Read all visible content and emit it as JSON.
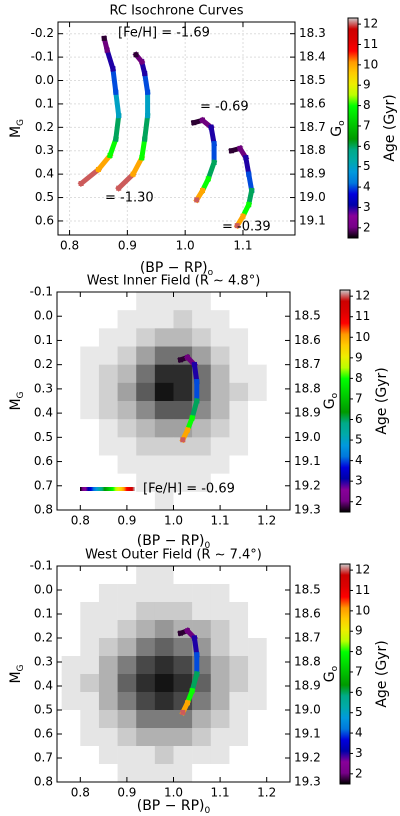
{
  "chart_data": [
    {
      "type": "line",
      "title": "RC Isochrone Curves",
      "xlabel": {
        "main": "(BP − RP)",
        "sub": "o"
      },
      "ylabel": {
        "main": "M",
        "sub": "G"
      },
      "y2label": {
        "main": "G",
        "sub": "o"
      },
      "xlim": [
        0.78,
        1.19
      ],
      "ylim": [
        -0.25,
        0.66
      ],
      "y2lim": [
        18.25,
        19.16
      ],
      "y_inverted": true,
      "grid": true,
      "xticks": [
        0.8,
        0.9,
        {
          "value": 1,
          "label": "1.0"
        },
        1.1
      ],
      "yticks": [
        -0.2,
        -0.1,
        {
          "value": 0,
          "label": "0.0"
        },
        0.1,
        0.2,
        0.3,
        0.4,
        0.5,
        0.6
      ],
      "y2ticks": [
        18.3,
        18.4,
        18.5,
        18.6,
        18.7,
        18.8,
        18.9,
        {
          "value": 19,
          "label": "19.0"
        },
        19.1
      ],
      "colorbar": {
        "label": "Age (Gyr)",
        "lim": [
          1.5,
          12.3
        ],
        "ticks": [
          2,
          3,
          4,
          5,
          6,
          7,
          8,
          9,
          10,
          11,
          12
        ],
        "cmap": "nipy_spectral"
      },
      "series": [
        {
          "name": "[Fe/H] = -1.69",
          "x": [
            0.82,
            0.85,
            0.87,
            0.88,
            0.885,
            0.88,
            0.875,
            0.865,
            0.86
          ],
          "values": [
            0.44,
            0.38,
            0.32,
            0.25,
            0.15,
            0.05,
            -0.05,
            -0.13,
            -0.18
          ],
          "age": [
            12,
            10,
            8,
            6,
            5,
            4,
            3,
            2,
            1.7
          ]
        },
        {
          "name": "= -1.30",
          "x": [
            0.885,
            0.91,
            0.925,
            0.93,
            0.935,
            0.935,
            0.93,
            0.925,
            0.915
          ],
          "values": [
            0.46,
            0.4,
            0.33,
            0.25,
            0.15,
            0.05,
            -0.03,
            -0.08,
            -0.11
          ],
          "age": [
            12,
            10,
            8,
            6,
            5,
            4,
            3,
            2,
            1.7
          ]
        },
        {
          "name": "= -0.69",
          "x": [
            1.015,
            1.03,
            1.045,
            1.05,
            1.05,
            1.04,
            1.03,
            1.02
          ],
          "values": [
            0.18,
            0.17,
            0.2,
            0.27,
            0.35,
            0.42,
            0.47,
            0.51
          ],
          "age": [
            1.7,
            2,
            3,
            4,
            6,
            8,
            10,
            12
          ]
        },
        {
          "name": "= -0.39",
          "x": [
            1.08,
            1.095,
            1.105,
            1.11,
            1.115,
            1.11,
            1.1,
            1.09
          ],
          "values": [
            0.3,
            0.29,
            0.33,
            0.4,
            0.47,
            0.53,
            0.58,
            0.62
          ],
          "age": [
            1.7,
            2,
            3,
            4,
            6,
            8,
            10,
            12
          ]
        }
      ]
    },
    {
      "type": "heatmap",
      "title": "West Inner Field (R  ∼  4.8°)",
      "xlabel": {
        "main": "(BP − RP)",
        "sub": "0"
      },
      "ylabel": {
        "main": "M",
        "sub": "G"
      },
      "y2label": {
        "main": "G",
        "sub": "o"
      },
      "xlim": [
        0.75,
        1.25
      ],
      "ylim": [
        -0.1,
        0.8
      ],
      "y2lim": [
        18.4,
        19.3
      ],
      "y_inverted": true,
      "grid": false,
      "xticks": [
        0.8,
        0.9,
        {
          "value": 1,
          "label": "1.0"
        },
        1.1,
        1.2
      ],
      "yticks": [
        -0.1,
        {
          "value": 0,
          "label": "0.0"
        },
        0.1,
        0.2,
        0.3,
        0.4,
        0.5,
        0.6,
        0.7,
        0.8
      ],
      "y2ticks": [
        18.5,
        18.6,
        18.7,
        18.8,
        18.9,
        {
          "value": 19,
          "label": "19.0"
        },
        19.1,
        19.2,
        19.3
      ],
      "colorbar": {
        "label": "Age (Gyr)",
        "lim": [
          1.5,
          12.3
        ],
        "ticks": [
          2,
          3,
          4,
          5,
          6,
          7,
          8,
          9,
          10,
          11,
          12
        ],
        "cmap": "nipy_spectral"
      },
      "xbins": [
        0.76,
        0.8,
        0.84,
        0.88,
        0.92,
        0.96,
        1.0,
        1.04,
        1.08,
        1.12,
        1.16,
        1.2,
        1.24
      ],
      "ybins": [
        -0.1,
        -0.025,
        0.05,
        0.125,
        0.2,
        0.275,
        0.35,
        0.425,
        0.5,
        0.575,
        0.65,
        0.725,
        0.8
      ],
      "z": [
        [
          0,
          0,
          0,
          0,
          1,
          1,
          1,
          1,
          0,
          0,
          0,
          0
        ],
        [
          0,
          0,
          0,
          1,
          1,
          1,
          2,
          1,
          1,
          0,
          0,
          0
        ],
        [
          0,
          0,
          1,
          1,
          2,
          3,
          3,
          2,
          1,
          1,
          0,
          0
        ],
        [
          0,
          1,
          1,
          2,
          4,
          6,
          6,
          4,
          2,
          1,
          0,
          0
        ],
        [
          0,
          1,
          2,
          3,
          6,
          9,
          9,
          6,
          3,
          1,
          1,
          0
        ],
        [
          0,
          1,
          2,
          4,
          7,
          10,
          9,
          6,
          3,
          2,
          1,
          0
        ],
        [
          0,
          1,
          2,
          3,
          5,
          7,
          7,
          5,
          3,
          1,
          0,
          0
        ],
        [
          0,
          0,
          1,
          2,
          3,
          4,
          4,
          3,
          2,
          1,
          0,
          0
        ],
        [
          0,
          0,
          1,
          1,
          2,
          2,
          2,
          2,
          1,
          1,
          0,
          0
        ],
        [
          0,
          0,
          0,
          1,
          1,
          1,
          1,
          1,
          1,
          0,
          0,
          0
        ],
        [
          0,
          0,
          0,
          0,
          1,
          1,
          1,
          1,
          0,
          0,
          0,
          0
        ],
        [
          0,
          0,
          0,
          0,
          0,
          1,
          0,
          0,
          0,
          0,
          0,
          0
        ]
      ],
      "series": [
        {
          "name": "[Fe/H] = -0.69",
          "x": [
            1.015,
            1.03,
            1.045,
            1.05,
            1.05,
            1.04,
            1.03,
            1.02
          ],
          "values": [
            0.18,
            0.17,
            0.2,
            0.27,
            0.35,
            0.42,
            0.47,
            0.51
          ],
          "age": [
            1.7,
            2,
            3,
            4,
            6,
            8,
            10,
            12
          ]
        }
      ]
    },
    {
      "type": "heatmap",
      "title": "West Outer Field (R  ∼  7.4°)",
      "xlabel": {
        "main": "(BP − RP)",
        "sub": "0"
      },
      "ylabel": {
        "main": "M",
        "sub": "G"
      },
      "y2label": {
        "main": "G",
        "sub": "o"
      },
      "xlim": [
        0.75,
        1.25
      ],
      "ylim": [
        -0.1,
        0.8
      ],
      "y2lim": [
        18.4,
        19.3
      ],
      "y_inverted": true,
      "grid": false,
      "xticks": [
        0.8,
        0.9,
        {
          "value": 1,
          "label": "1.0"
        },
        1.1,
        1.2
      ],
      "yticks": [
        -0.1,
        {
          "value": 0,
          "label": "0.0"
        },
        0.1,
        0.2,
        0.3,
        0.4,
        0.5,
        0.6,
        0.7,
        0.8
      ],
      "y2ticks": [
        18.5,
        18.6,
        18.7,
        18.8,
        18.9,
        {
          "value": 19,
          "label": "19.0"
        },
        19.1,
        19.2,
        19.3
      ],
      "colorbar": {
        "label": "Age (Gyr)",
        "lim": [
          1.5,
          12.3
        ],
        "ticks": [
          2,
          3,
          4,
          5,
          6,
          7,
          8,
          9,
          10,
          11,
          12
        ],
        "cmap": "nipy_spectral"
      },
      "xbins": [
        0.76,
        0.8,
        0.84,
        0.88,
        0.92,
        0.96,
        1.0,
        1.04,
        1.08,
        1.12,
        1.16,
        1.2,
        1.24
      ],
      "ybins": [
        -0.1,
        -0.025,
        0.05,
        0.125,
        0.2,
        0.275,
        0.35,
        0.425,
        0.5,
        0.575,
        0.65,
        0.725,
        0.8
      ],
      "z": [
        [
          0,
          0,
          0,
          0,
          1,
          1,
          0,
          0,
          0,
          0,
          0,
          0
        ],
        [
          0,
          0,
          1,
          1,
          1,
          1,
          1,
          1,
          1,
          0,
          0,
          0
        ],
        [
          0,
          1,
          1,
          1,
          2,
          2,
          2,
          1,
          1,
          1,
          0,
          0
        ],
        [
          0,
          1,
          1,
          2,
          3,
          4,
          3,
          3,
          2,
          1,
          0,
          0
        ],
        [
          0,
          1,
          2,
          3,
          5,
          6,
          5,
          4,
          2,
          1,
          1,
          0
        ],
        [
          1,
          1,
          3,
          5,
          7,
          8,
          7,
          5,
          3,
          2,
          1,
          0
        ],
        [
          1,
          2,
          3,
          6,
          8,
          9,
          8,
          6,
          3,
          2,
          1,
          0
        ],
        [
          1,
          1,
          3,
          5,
          7,
          8,
          7,
          5,
          3,
          1,
          1,
          0
        ],
        [
          0,
          1,
          2,
          3,
          5,
          5,
          5,
          3,
          2,
          1,
          0,
          0
        ],
        [
          0,
          1,
          1,
          2,
          3,
          3,
          3,
          2,
          1,
          1,
          0,
          0
        ],
        [
          0,
          0,
          1,
          1,
          1,
          2,
          1,
          1,
          1,
          0,
          0,
          0
        ],
        [
          0,
          0,
          0,
          1,
          1,
          1,
          1,
          0,
          0,
          0,
          0,
          0
        ]
      ],
      "series": [
        {
          "x": [
            1.015,
            1.03,
            1.045,
            1.05,
            1.05,
            1.04,
            1.03,
            1.02
          ],
          "values": [
            0.18,
            0.17,
            0.2,
            0.27,
            0.35,
            0.42,
            0.47,
            0.51
          ],
          "age": [
            1.7,
            2,
            3,
            4,
            6,
            8,
            10,
            12
          ]
        }
      ]
    }
  ]
}
